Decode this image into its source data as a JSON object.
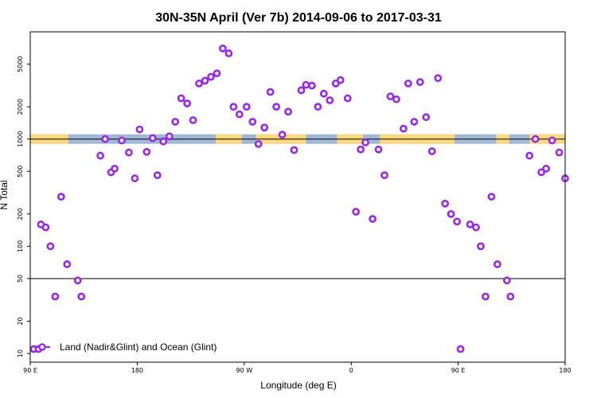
{
  "chart_data": {
    "type": "scatter",
    "title": "30N-35N April (Ver 7b)   2014-09-06 to 2017-03-31",
    "xlabel": "Longitude (deg E)",
    "ylabel": "N Total",
    "x_scale": "linear",
    "y_scale": "log",
    "xlim": [
      90,
      540
    ],
    "ylim": [
      8.3,
      10000
    ],
    "x_tick_values": [
      90,
      180,
      270,
      360,
      450,
      540
    ],
    "x_tick_labels": [
      "90 E",
      "180",
      "90 W",
      "0",
      "90 E",
      "180"
    ],
    "y_tick_values": [
      10,
      20,
      50,
      100,
      200,
      500,
      1000,
      2000,
      5000
    ],
    "y_tick_labels": [
      "10",
      "20",
      "50",
      "100",
      "200",
      "500",
      "1000",
      "2000",
      "5000"
    ],
    "reference_lines": [
      50,
      1000
    ],
    "grid": false,
    "legend_position": "bottom-left",
    "colors": {
      "marker": "#9a27e8",
      "land": "#fdd97e",
      "ocean": "#a1b7d6",
      "reference_line": "#000000"
    },
    "land_ocean_band": {
      "center_value": 1000,
      "land_segments": [
        [
          90,
          122
        ],
        [
          246,
          268
        ],
        [
          280,
          322
        ],
        [
          348,
          370
        ],
        [
          384,
          447
        ],
        [
          482,
          493
        ],
        [
          510,
          540
        ]
      ]
    },
    "series": [
      {
        "name": "Land (Nadir&Glint) and Ocean (Glint)",
        "points": [
          [
            93,
            11
          ],
          [
            97,
            11
          ],
          [
            99,
            160
          ],
          [
            103,
            150
          ],
          [
            107,
            100
          ],
          [
            111,
            34
          ],
          [
            116,
            290
          ],
          [
            121,
            68
          ],
          [
            130,
            48
          ],
          [
            133,
            34
          ],
          [
            149,
            700
          ],
          [
            153,
            1000
          ],
          [
            158,
            490
          ],
          [
            161,
            530
          ],
          [
            167,
            970
          ],
          [
            173,
            750
          ],
          [
            178,
            430
          ],
          [
            182,
            1230
          ],
          [
            188,
            760
          ],
          [
            193,
            1020
          ],
          [
            197,
            460
          ],
          [
            202,
            950
          ],
          [
            207,
            1060
          ],
          [
            212,
            1450
          ],
          [
            217,
            2400
          ],
          [
            222,
            2150
          ],
          [
            227,
            1500
          ],
          [
            232,
            3300
          ],
          [
            237,
            3500
          ],
          [
            242,
            3800
          ],
          [
            247,
            4100
          ],
          [
            252,
            7000
          ],
          [
            257,
            6300
          ],
          [
            261,
            2000
          ],
          [
            266,
            1700
          ],
          [
            272,
            2000
          ],
          [
            277,
            1450
          ],
          [
            282,
            900
          ],
          [
            287,
            1280
          ],
          [
            292,
            2750
          ],
          [
            297,
            2000
          ],
          [
            302,
            1100
          ],
          [
            307,
            1800
          ],
          [
            312,
            790
          ],
          [
            318,
            2850
          ],
          [
            322,
            3200
          ],
          [
            327,
            3150
          ],
          [
            332,
            2000
          ],
          [
            337,
            2650
          ],
          [
            342,
            2300
          ],
          [
            347,
            3300
          ],
          [
            351,
            3550
          ],
          [
            357,
            2400
          ],
          [
            364,
            210
          ],
          [
            368,
            800
          ],
          [
            372,
            930
          ],
          [
            378,
            180
          ],
          [
            383,
            800
          ],
          [
            388,
            460
          ],
          [
            393,
            2500
          ],
          [
            398,
            2350
          ],
          [
            404,
            1250
          ],
          [
            408,
            3300
          ],
          [
            413,
            1450
          ],
          [
            418,
            3400
          ],
          [
            423,
            1600
          ],
          [
            428,
            770
          ],
          [
            433,
            3700
          ],
          [
            439,
            250
          ],
          [
            444,
            200
          ],
          [
            449,
            170
          ],
          [
            452,
            11
          ],
          [
            460,
            160
          ],
          [
            465,
            150
          ],
          [
            469,
            100
          ],
          [
            473,
            34
          ],
          [
            478,
            290
          ],
          [
            483,
            68
          ],
          [
            491,
            48
          ],
          [
            494,
            34
          ],
          [
            510,
            700
          ],
          [
            515,
            1000
          ],
          [
            520,
            490
          ],
          [
            524,
            530
          ],
          [
            529,
            970
          ],
          [
            535,
            750
          ],
          [
            540,
            430
          ]
        ]
      }
    ]
  }
}
